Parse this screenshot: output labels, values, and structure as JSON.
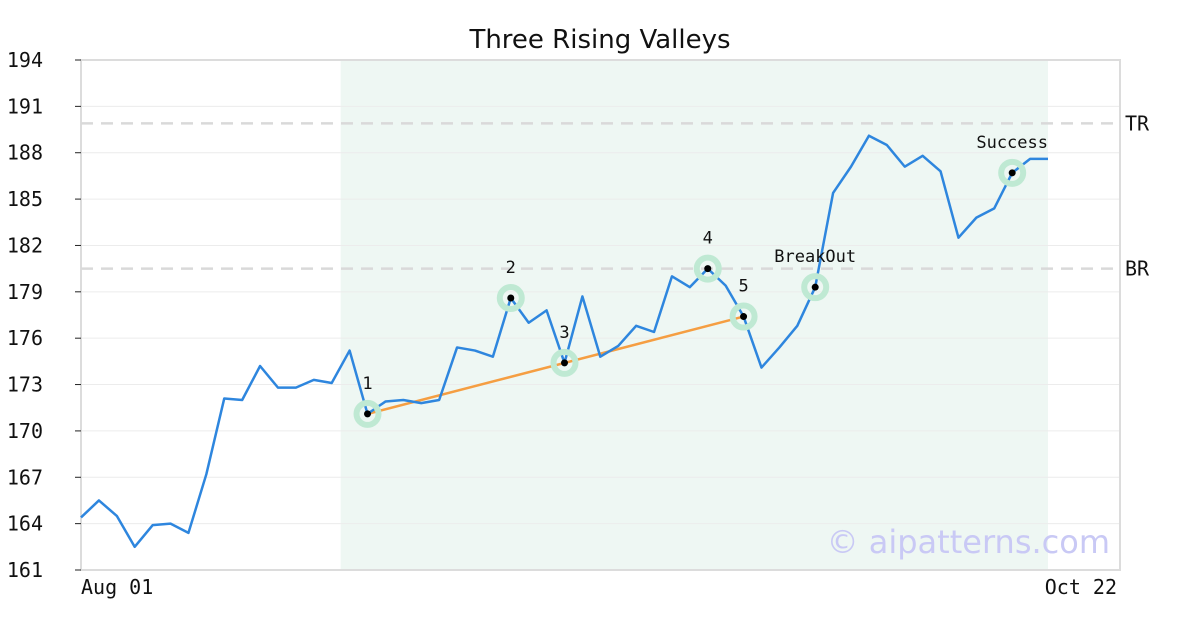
{
  "chart_data": {
    "type": "line",
    "title": "Three Rising Valleys",
    "xlabel": "",
    "ylabel": "",
    "ylim": [
      161,
      194
    ],
    "yticks": [
      161,
      164,
      167,
      170,
      173,
      176,
      179,
      182,
      185,
      188,
      191,
      194
    ],
    "x_tick_labels": [
      "Aug 01",
      "Oct 22"
    ],
    "grid": true,
    "watermark": "© aipatterns.com",
    "colors": {
      "line": "#2e86de",
      "trend": "#f59e42",
      "highlight": "#eef7f3",
      "marker_halo": "#bfe9d3",
      "reference": "#d9d9d9",
      "watermark": "#c9c9f5"
    },
    "series": [
      {
        "values": [
          164.4,
          165.5,
          164.5,
          162.5,
          163.9,
          164.0,
          163.4,
          167.2,
          172.1,
          172.0,
          174.2,
          172.8,
          172.8,
          173.3,
          173.1,
          175.2,
          171.1,
          171.9,
          172.0,
          171.8,
          172.0,
          175.4,
          175.2,
          174.8,
          178.6,
          177.0,
          177.8,
          174.4,
          178.7,
          174.8,
          175.5,
          176.8,
          176.4,
          180.0,
          179.3,
          180.5,
          179.4,
          177.4,
          174.1,
          175.4,
          176.8,
          179.3,
          185.4,
          187.1,
          189.1,
          188.5,
          187.1,
          187.8,
          186.8,
          182.5,
          183.8,
          184.4,
          186.7,
          187.6,
          187.6
        ]
      }
    ],
    "highlight_range": {
      "start_index": 14,
      "end_index": 54
    },
    "reference_lines": [
      {
        "label": "TR",
        "value": 189.9
      },
      {
        "label": "BR",
        "value": 180.5
      }
    ],
    "trend_line": {
      "from_index": 16,
      "to_index": 37
    },
    "annotations": [
      {
        "label": "1",
        "index": 16,
        "value": 171.1
      },
      {
        "label": "2",
        "index": 24,
        "value": 178.6
      },
      {
        "label": "3",
        "index": 27,
        "value": 174.4
      },
      {
        "label": "4",
        "index": 35,
        "value": 180.5
      },
      {
        "label": "5",
        "index": 37,
        "value": 177.4
      },
      {
        "label": "BreakOut",
        "index": 41,
        "value": 179.3
      },
      {
        "label": "Success",
        "index": 52,
        "value": 186.7
      }
    ]
  }
}
